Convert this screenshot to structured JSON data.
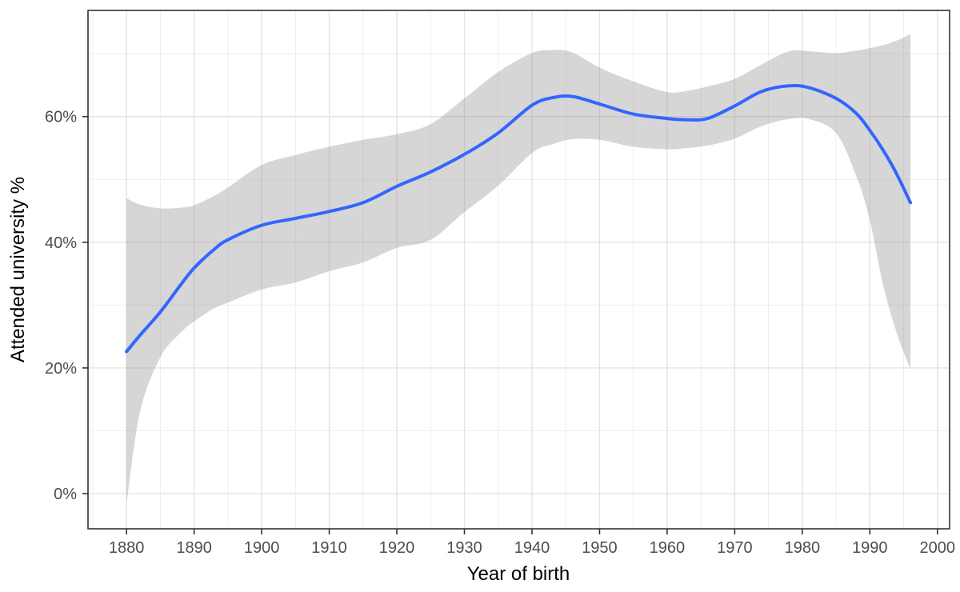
{
  "chart_data": {
    "type": "line",
    "title": "",
    "xlabel": "Year of birth",
    "ylabel": "Attended university %",
    "legend": "none",
    "grid": true,
    "panel": {
      "border_color": "#333333",
      "background": "#ffffff"
    },
    "colors": {
      "line": "#3366FF",
      "band_fill": "#999999",
      "band_opacity": 0.4,
      "grid_major": "#e3e3e3",
      "grid_minor": "#ededed",
      "tick": "#333333",
      "tick_label": "#4d4d4d",
      "axis_title": "#000000"
    },
    "xlim": [
      1874.3,
      2001.8
    ],
    "ylim": [
      -5.6,
      76.9
    ],
    "x_ticks": [
      1880,
      1890,
      1900,
      1910,
      1920,
      1930,
      1940,
      1950,
      1960,
      1970,
      1980,
      1990,
      2000
    ],
    "x_tick_labels": [
      "1880",
      "1890",
      "1900",
      "1910",
      "1920",
      "1930",
      "1940",
      "1950",
      "1960",
      "1970",
      "1980",
      "1990",
      "2000"
    ],
    "x_minor_ticks": [
      1875,
      1885,
      1895,
      1905,
      1915,
      1925,
      1935,
      1945,
      1955,
      1965,
      1975,
      1985,
      1995
    ],
    "y_ticks": [
      0,
      20,
      40,
      60
    ],
    "y_tick_labels": [
      "0%",
      "20%",
      "40%",
      "60%"
    ],
    "y_minor_ticks": [
      10,
      30,
      50,
      70
    ],
    "x": [
      1880,
      1882,
      1885,
      1888,
      1890,
      1893,
      1895,
      1900,
      1905,
      1910,
      1915,
      1920,
      1925,
      1930,
      1935,
      1940,
      1943,
      1946,
      1950,
      1955,
      1960,
      1963,
      1966,
      1970,
      1974,
      1978,
      1981,
      1985,
      1988,
      1990,
      1992,
      1994,
      1996
    ],
    "series": [
      {
        "name": "smoothed-attendance",
        "style": "smooth",
        "y": [
          22.6,
          25.2,
          28.9,
          33.2,
          35.9,
          38.9,
          40.4,
          42.7,
          43.8,
          44.9,
          46.3,
          48.9,
          51.2,
          54.0,
          57.4,
          61.8,
          63.0,
          63.2,
          62.0,
          60.4,
          59.7,
          59.5,
          59.7,
          61.7,
          64.0,
          64.9,
          64.6,
          62.9,
          60.5,
          57.8,
          54.6,
          50.8,
          46.3
        ]
      }
    ],
    "band": {
      "name": "confidence-band",
      "upper": [
        47.0,
        46.0,
        45.4,
        45.5,
        45.9,
        47.4,
        48.7,
        52.3,
        53.9,
        55.2,
        56.3,
        57.2,
        58.8,
        62.9,
        67.1,
        70.1,
        70.6,
        70.2,
        67.8,
        65.6,
        63.9,
        64.1,
        64.8,
        66.0,
        68.3,
        70.4,
        70.4,
        70.1,
        70.5,
        70.9,
        71.4,
        72.1,
        73.1
      ],
      "lower": [
        -1.6,
        13.0,
        21.7,
        25.6,
        27.4,
        29.5,
        30.4,
        32.5,
        33.6,
        35.4,
        36.8,
        39.1,
        40.4,
        44.8,
        49.0,
        54.2,
        55.6,
        56.4,
        56.3,
        55.2,
        54.8,
        55.0,
        55.4,
        56.5,
        58.5,
        59.6,
        59.6,
        57.4,
        50.5,
        43.5,
        33.0,
        25.5,
        19.8
      ]
    }
  }
}
